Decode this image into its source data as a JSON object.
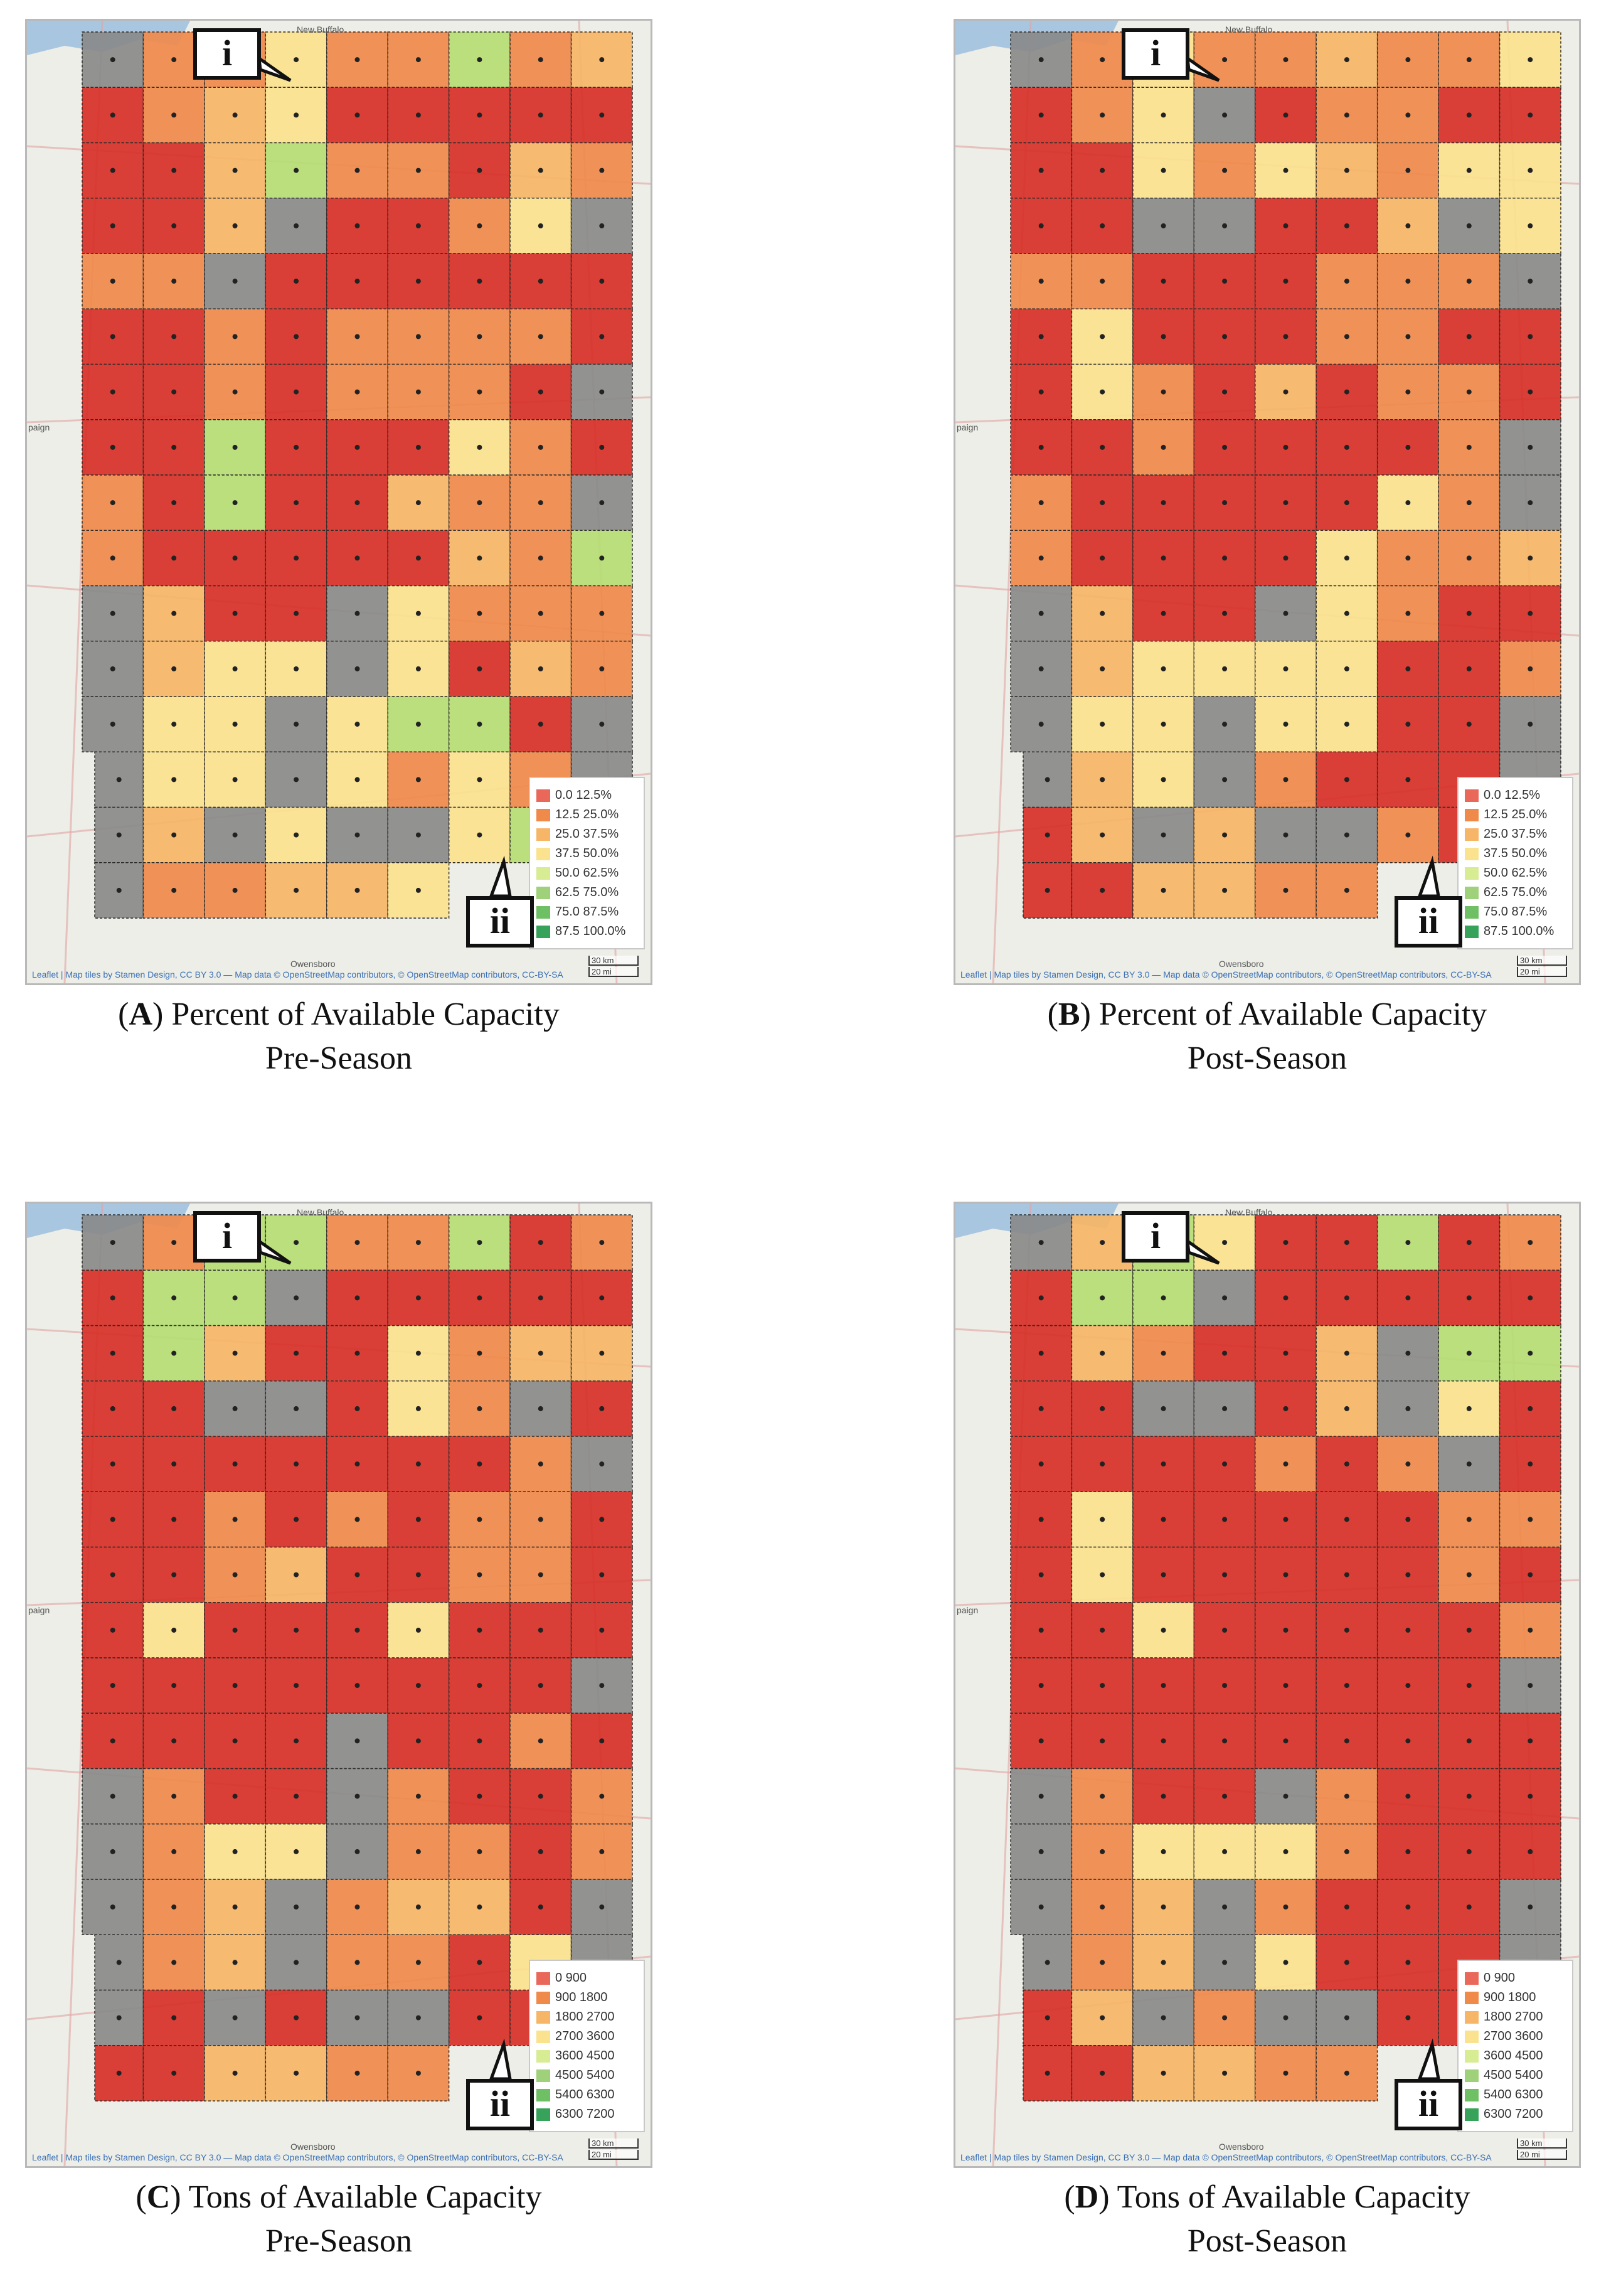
{
  "panels": [
    {
      "letter": "A",
      "caption_line1": ") Percent of Available Capacity",
      "caption_line2": "Pre-Season",
      "legend": [
        "0.0 12.5%",
        "12.5 25.0%",
        "25.0 37.5%",
        "37.5 50.0%",
        "50.0 62.5%",
        "62.5 75.0%",
        "75.0 87.5%",
        "87.5 100.0%"
      ],
      "grid": [
        "XOOYOOGOL",
        "ROLYRRRRR",
        "RRLGOORLO",
        "RRLXRROYX",
        "OOXRRRRRR",
        "RROROOOOR",
        "RROROOORX",
        "RRGRRRYOR",
        "ORGRRLOOX",
        "ORRRRRLOG",
        "XLRRXYOOO",
        "XLYYXYRLO",
        "XYYXYGGRX",
        "XYYXYOYOX",
        "XLXYXXYGX",
        "XOOLLYLXX"
      ]
    },
    {
      "letter": "B",
      "caption_line1": ") Percent of Available Capacity",
      "caption_line2": "Post-Season",
      "legend": [
        "0.0 12.5%",
        "12.5 25.0%",
        "25.0 37.5%",
        "37.5 50.0%",
        "50.0 62.5%",
        "62.5 75.0%",
        "75.0 87.5%",
        "87.5 100.0%"
      ],
      "grid": [
        "XOYOOLOOY",
        "ROYXROORR",
        "RRYOYLOYY",
        "RRXXRRLXY",
        "OORRROOOX",
        "RYRRROORR",
        "RYORLROOR",
        "RRORRRROX",
        "ORRRRRYOX",
        "ORRRRYOOL",
        "XLRRXYORR",
        "XLYYYYRRO",
        "XYYXYYRRX",
        "XLYXORRRX",
        "RLXLXXORX",
        "RRLLOOXXX"
      ]
    },
    {
      "letter": "C",
      "caption_line1": ") Tons of Available Capacity",
      "caption_line2": "Pre-Season",
      "legend": [
        "0   900",
        "900   1800",
        "1800   2700",
        "2700   3600",
        "3600   4500",
        "4500   5400",
        "5400   6300",
        "6300   7200"
      ],
      "grid": [
        "XOGGOOGRO",
        "RGGXRRRRR",
        "RGLRRYOLL",
        "RRXXRYOXR",
        "RRRRRRROX",
        "RROROROOR",
        "RROLRROOR",
        "RYRRRYRRR",
        "RRRRRRRRX",
        "RRRRXRROR",
        "XORRXORRO",
        "XOYYXOORO",
        "XOLXOLLRX",
        "XOLXOORYX",
        "XRXRXXRRX",
        "RRLLOOXXX"
      ]
    },
    {
      "letter": "D",
      "caption_line1": ") Tons of Available Capacity",
      "caption_line2": "Post-Season",
      "legend": [
        "0   900",
        "900   1800",
        "1800   2700",
        "2700   3600",
        "3600   4500",
        "4500   5400",
        "5400   6300",
        "6300   7200"
      ],
      "grid": [
        "XLGYRRGRO",
        "RGGXRRRRR",
        "RLORRLXGG",
        "RRXXRLXYR",
        "RRRROROXR",
        "RYRRRRROO",
        "RYRRRRROR",
        "RRYRRRRRO",
        "RRRRRRRRX",
        "RRRRRRRRR",
        "XORRXORRR",
        "XOYYYORRR",
        "XOLXORRRX",
        "XOLXYRRRX",
        "RLXOXXRRX",
        "RRLLOOXXX"
      ]
    }
  ],
  "scale_km": "30 km",
  "scale_mi": "20 mi",
  "attribution": "Leaflet | Map tiles by Stamen Design, CC BY 3.0 — Map data © OpenStreetMap contributors, © OpenStreetMap contributors, CC-BY-SA",
  "place_top": "New Buffalo",
  "place_bottom": "Owensboro",
  "place_left": "paign",
  "callout_i": "i",
  "callout_ii": "ii",
  "colors": {
    "R": "#d73027",
    "O": "#f08a4b",
    "L": "#f6b567",
    "Y": "#fbe28e",
    "G": "#b5dd73",
    "K": "#6fbf64",
    "D": "#37a35a",
    "X": "#8a8a8a",
    "legend": [
      "#e9685a",
      "#f08a4b",
      "#f6b567",
      "#fbe28e",
      "#d7ec93",
      "#9fd07a",
      "#6fbf64",
      "#37a35a"
    ]
  }
}
